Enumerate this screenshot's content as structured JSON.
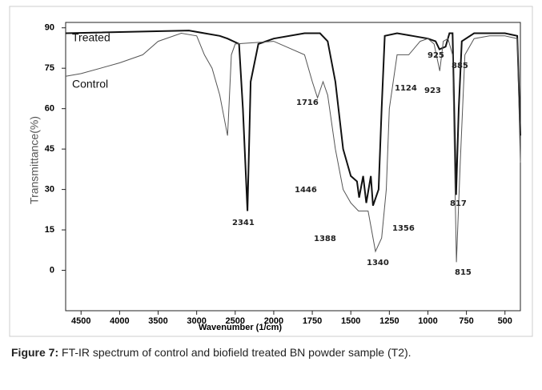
{
  "chart_data": {
    "type": "line",
    "xlabel": "Wavenumber (1/cm)",
    "ylabel": "Transmittance(%)",
    "xlim": [
      4700,
      400
    ],
    "xticks": [
      4500,
      4000,
      3500,
      3000,
      2500,
      2000,
      1750,
      1500,
      1250,
      1000,
      750,
      500
    ],
    "ylim": [
      -15,
      92
    ],
    "yticks": [
      0,
      15,
      30,
      45,
      60,
      75,
      90
    ],
    "series": [
      {
        "name": "Treated",
        "color": "#111111",
        "x": [
          4700,
          3100,
          2900,
          2700,
          2600,
          2450,
          2400,
          2341,
          2300,
          2200,
          2000,
          1800,
          1700,
          1650,
          1600,
          1550,
          1500,
          1460,
          1446,
          1420,
          1400,
          1370,
          1356,
          1320,
          1300,
          1280,
          1200,
          1100,
          1000,
          950,
          925,
          885,
          860,
          840,
          817,
          800,
          780,
          700,
          600,
          500,
          420,
          400
        ],
        "values": [
          88,
          89,
          88,
          87,
          86,
          84,
          60,
          22,
          70,
          84,
          86,
          88,
          88,
          85,
          70,
          45,
          35,
          33,
          27,
          35,
          25,
          35,
          24,
          30,
          60,
          87,
          88,
          87,
          86,
          85,
          82,
          83,
          88,
          88,
          28,
          60,
          85,
          88,
          88,
          88,
          87,
          50
        ]
      },
      {
        "name": "Control",
        "color": "#555555",
        "x": [
          4700,
          4500,
          4000,
          3700,
          3500,
          3200,
          3000,
          2900,
          2800,
          2700,
          2600,
          2590,
          2550,
          2500,
          2000,
          1800,
          1750,
          1716,
          1680,
          1650,
          1600,
          1550,
          1500,
          1450,
          1388,
          1340,
          1300,
          1270,
          1250,
          1200,
          1124,
          1050,
          1000,
          960,
          923,
          900,
          870,
          840,
          815,
          790,
          760,
          700,
          600,
          500,
          420,
          400
        ],
        "values": [
          72,
          73,
          77,
          80,
          85,
          88,
          87,
          80,
          75,
          65,
          50,
          55,
          80,
          84,
          85,
          80,
          70,
          64,
          70,
          65,
          45,
          30,
          25,
          22,
          22,
          7,
          12,
          30,
          60,
          80,
          80,
          85,
          86,
          84,
          74,
          85,
          86,
          80,
          3,
          40,
          80,
          86,
          87,
          87,
          86,
          40
        ]
      }
    ],
    "annotations": [
      "1716",
      "2341",
      "1446",
      "1388",
      "1340",
      "1356",
      "1124",
      "925",
      "885",
      "923",
      "817",
      "815"
    ]
  },
  "caption": {
    "label": "Figure 7:",
    "text": "FT-IR spectrum of control and biofield treated BN powder sample (T2)."
  }
}
